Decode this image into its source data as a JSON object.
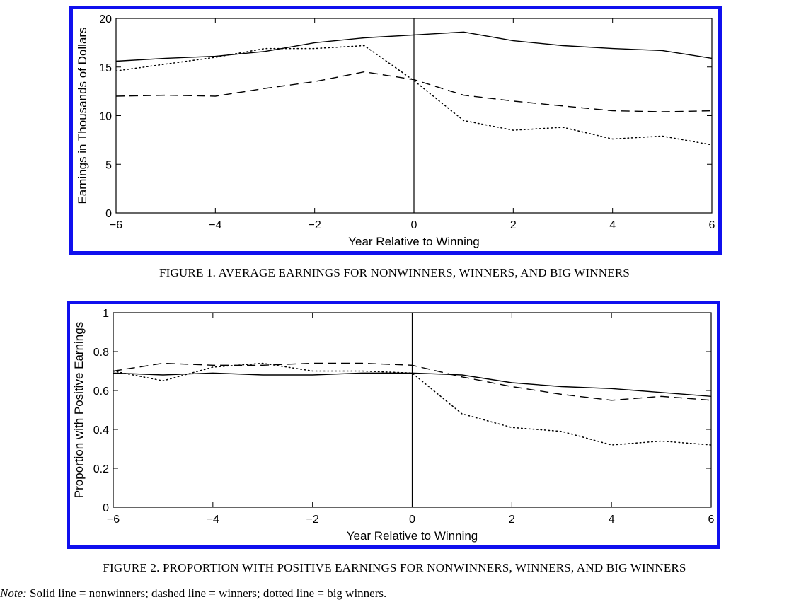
{
  "chart_data": [
    {
      "type": "line",
      "xlabel": "Year Relative to Winning",
      "ylabel": "Earnings in Thousands of Dollars",
      "xlim": [
        -6,
        6
      ],
      "ylim": [
        0,
        20
      ],
      "xticks": [
        -6,
        -4,
        -2,
        0,
        2,
        4,
        6
      ],
      "yticks": [
        0,
        5,
        10,
        15,
        20
      ],
      "vline_x": 0,
      "grid": false,
      "x": [
        -6,
        -5,
        -4,
        -3,
        -2,
        -1,
        0,
        1,
        2,
        3,
        4,
        5,
        6
      ],
      "series": [
        {
          "style": "solid",
          "values": [
            15.6,
            15.9,
            16.1,
            16.6,
            17.5,
            18.0,
            18.3,
            18.6,
            17.7,
            17.2,
            16.9,
            16.7,
            15.9
          ]
        },
        {
          "style": "dashed",
          "values": [
            12.0,
            12.1,
            12.0,
            12.8,
            13.5,
            14.5,
            13.7,
            12.1,
            11.5,
            11.0,
            10.5,
            10.4,
            10.5
          ]
        },
        {
          "style": "dotted",
          "values": [
            14.6,
            15.3,
            16.0,
            16.9,
            16.9,
            17.2,
            13.6,
            9.5,
            8.5,
            8.8,
            7.6,
            7.9,
            7.0
          ]
        }
      ]
    },
    {
      "type": "line",
      "xlabel": "Year Relative to Winning",
      "ylabel": "Proportion with Positive Earnings",
      "xlim": [
        -6,
        6
      ],
      "ylim": [
        0,
        1
      ],
      "xticks": [
        -6,
        -4,
        -2,
        0,
        2,
        4,
        6
      ],
      "yticks": [
        0,
        0.2,
        0.4,
        0.6,
        0.8,
        1
      ],
      "vline_x": 0,
      "grid": false,
      "x": [
        -6,
        -5,
        -4,
        -3,
        -2,
        -1,
        0,
        1,
        2,
        3,
        4,
        5,
        6
      ],
      "series": [
        {
          "style": "solid",
          "values": [
            0.69,
            0.68,
            0.69,
            0.68,
            0.68,
            0.69,
            0.69,
            0.68,
            0.64,
            0.62,
            0.61,
            0.59,
            0.57
          ]
        },
        {
          "style": "dashed",
          "values": [
            0.7,
            0.74,
            0.73,
            0.73,
            0.74,
            0.74,
            0.73,
            0.67,
            0.62,
            0.58,
            0.55,
            0.57,
            0.55
          ]
        },
        {
          "style": "dotted",
          "values": [
            0.7,
            0.65,
            0.72,
            0.74,
            0.7,
            0.7,
            0.69,
            0.48,
            0.41,
            0.39,
            0.32,
            0.34,
            0.32
          ]
        }
      ]
    }
  ],
  "captions": {
    "figure1": "FIGURE 1. AVERAGE EARNINGS FOR NONWINNERS, WINNERS, AND BIG WINNERS",
    "figure2": "FIGURE 2. PROPORTION WITH POSITIVE EARNINGS FOR NONWINNERS, WINNERS, AND BIG WINNERS",
    "note_label": "Note:",
    "note_text": " Solid line = nonwinners; dashed line = winners; dotted line = big winners."
  },
  "colors": {
    "frame": "#1010ee",
    "line": "#000000"
  }
}
